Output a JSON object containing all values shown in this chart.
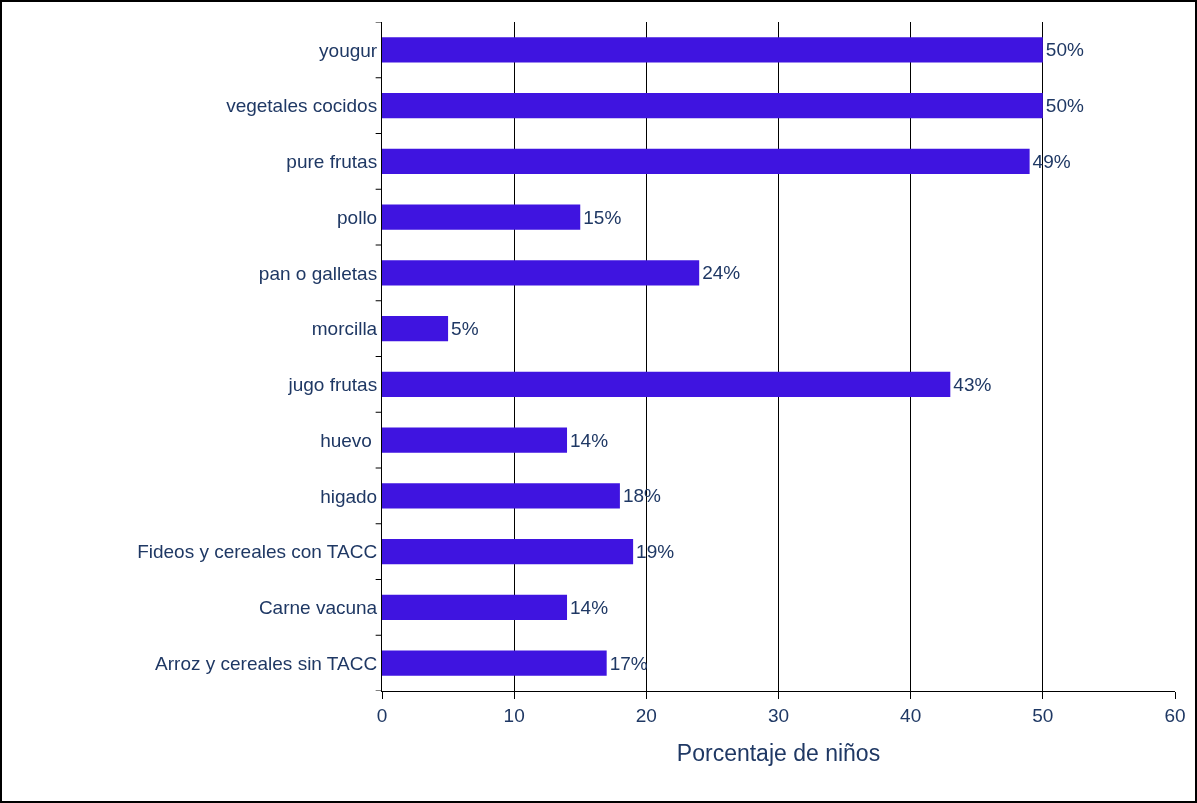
{
  "chart_data": {
    "type": "bar",
    "orientation": "horizontal",
    "xlabel": "Porcentaje de niños",
    "categories": [
      "yougur",
      "vegetales cocidos",
      "pure frutas",
      "pollo",
      "pan o galletas",
      "morcilla",
      "jugo frutas",
      "huevo ",
      "higado",
      "Fideos y cereales con TACC",
      "Carne vacuna",
      "Arroz y cereales sin TACC"
    ],
    "values": [
      50,
      50,
      49,
      15,
      24,
      5,
      43,
      14,
      18,
      19,
      14,
      17
    ],
    "value_labels": [
      "50%",
      "50%",
      "49%",
      "15%",
      "24%",
      "5%",
      "43%",
      "14%",
      "18%",
      "19%",
      "14%",
      "17%"
    ],
    "color": "#3f14e0",
    "xlim": [
      0,
      60
    ],
    "xticks": [
      0,
      10,
      20,
      30,
      40,
      50,
      60
    ],
    "grid": "x",
    "legend": false
  }
}
